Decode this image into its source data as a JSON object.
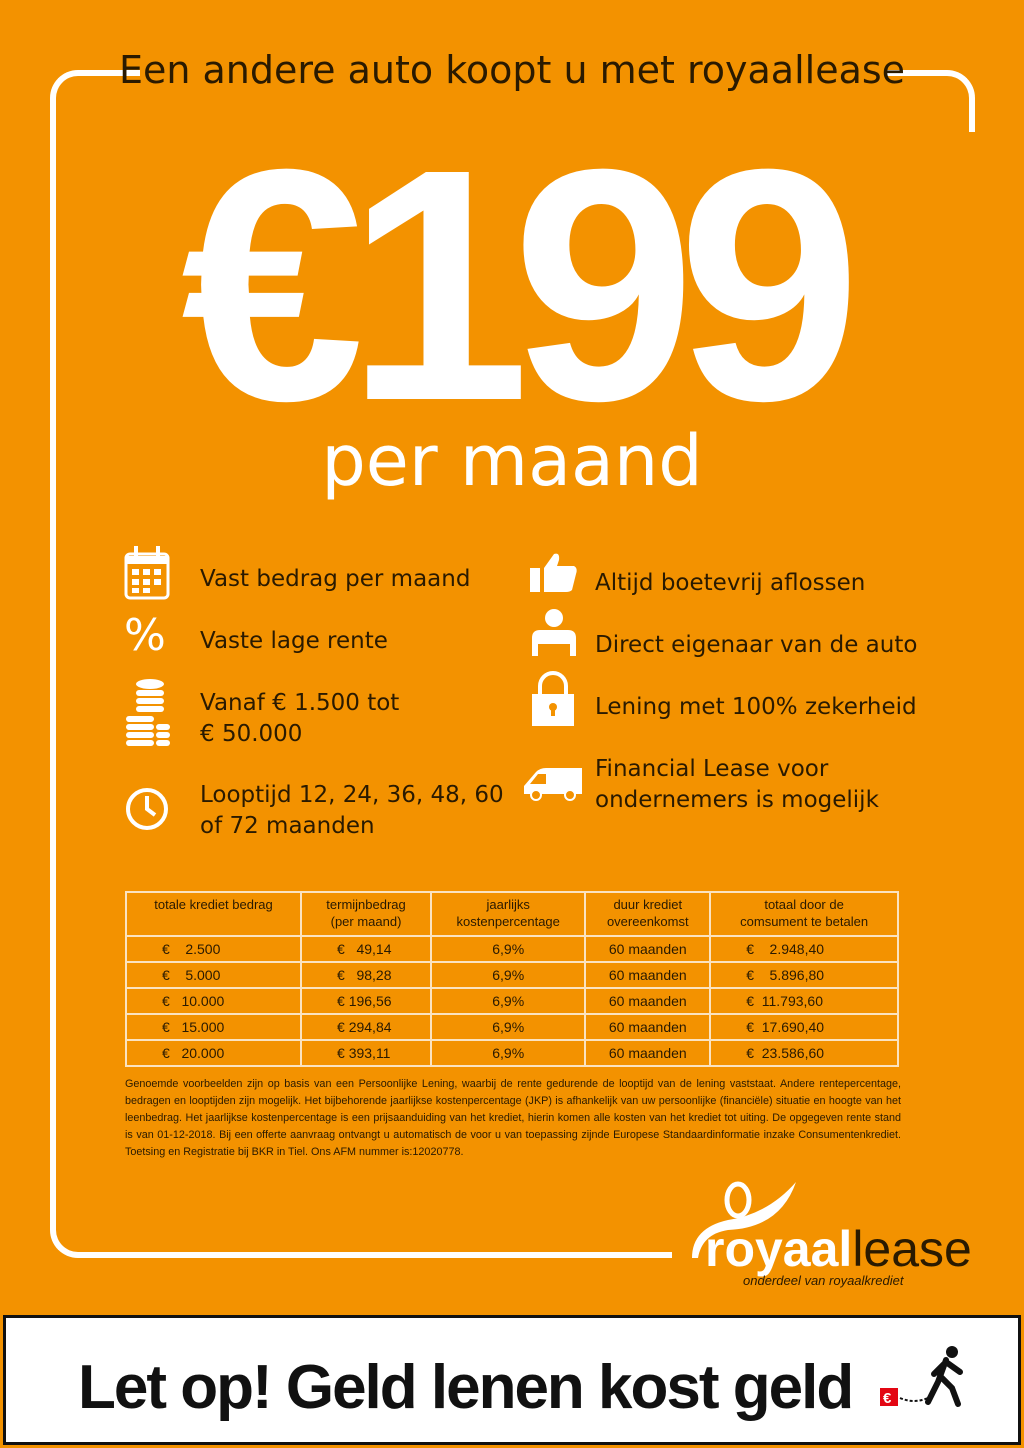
{
  "title": "Een andere auto koopt u met royaallease",
  "price": "€199",
  "per": "per maand",
  "features_left": [
    {
      "icon": "calendar-icon",
      "text": "Vast bedrag per maand"
    },
    {
      "icon": "percent-icon",
      "text": "Vaste lage rente"
    },
    {
      "icon": "coins-icon",
      "line1": "Vanaf € 1.500 tot",
      "line2": "€ 50.000"
    },
    {
      "icon": "clock-icon",
      "line1": "Looptijd 12, 24, 36, 48, 60",
      "line2": "of 72 maanden"
    }
  ],
  "features_right": [
    {
      "icon": "thumbs-up-icon",
      "text": "Altijd boetevrij aflossen"
    },
    {
      "icon": "person-icon",
      "text": "Direct eigenaar van de auto"
    },
    {
      "icon": "lock-icon",
      "text": "Lening met 100% zekerheid"
    },
    {
      "icon": "van-icon",
      "line1": "Financial Lease voor",
      "line2": "ondernemers is mogelijk"
    }
  ],
  "table": {
    "headers": [
      [
        "totale krediet bedrag",
        ""
      ],
      [
        "termijnbedrag",
        "(per maand)"
      ],
      [
        "jaarlijks",
        "kostenpercentage"
      ],
      [
        "duur krediet",
        "overeenkomst"
      ],
      [
        "totaal door de",
        "comsument te betalen"
      ]
    ],
    "rows": [
      [
        "€    2.500",
        "€   49,14",
        "6,9%",
        "60 maanden",
        "€    2.948,40"
      ],
      [
        "€    5.000",
        "€   98,28",
        "6,9%",
        "60 maanden",
        "€    5.896,80"
      ],
      [
        "€   10.000",
        "€ 196,56",
        "6,9%",
        "60 maanden",
        "€  11.793,60"
      ],
      [
        "€   15.000",
        "€ 294,84",
        "6,9%",
        "60 maanden",
        "€  17.690,40"
      ],
      [
        "€   20.000",
        "€ 393,11",
        "6,9%",
        "60 maanden",
        "€  23.586,60"
      ]
    ]
  },
  "fine_print": "Genoemde voorbeelden zijn op basis van een Persoonlijke Lening, waarbij de rente gedurende de looptijd van de lening vaststaat. Andere rentepercentage, bedragen en looptijden zijn mogelijk. Het bijbehorende jaarlijkse kostenpercentage (JKP) is afhankelijk van uw persoonlijke (financiële) situatie en hoogte van het leenbedrag. Het jaarlijkse kostenpercentage is een prijsaanduiding van het krediet, hierin komen alle kosten van het krediet tot uiting. De opgegeven rente stand is van 01-12-2018.  Bij een offerte aanvraag ontvangt u automatisch de voor u van toepassing zijnde Europese Standaardinformatie inzake Consumentenkrediet. Toetsing en Registratie bij BKR in Tiel. Ons AFM nummer is:12020778.",
  "logo": {
    "part1": "royaal",
    "part2": "lease",
    "tagline": "onderdeel van royaalkrediet"
  },
  "warning": "Let op! Geld lenen kost geld",
  "colors": {
    "background": "#f39200",
    "accent": "#ffffff",
    "text": "#2a1a00"
  }
}
